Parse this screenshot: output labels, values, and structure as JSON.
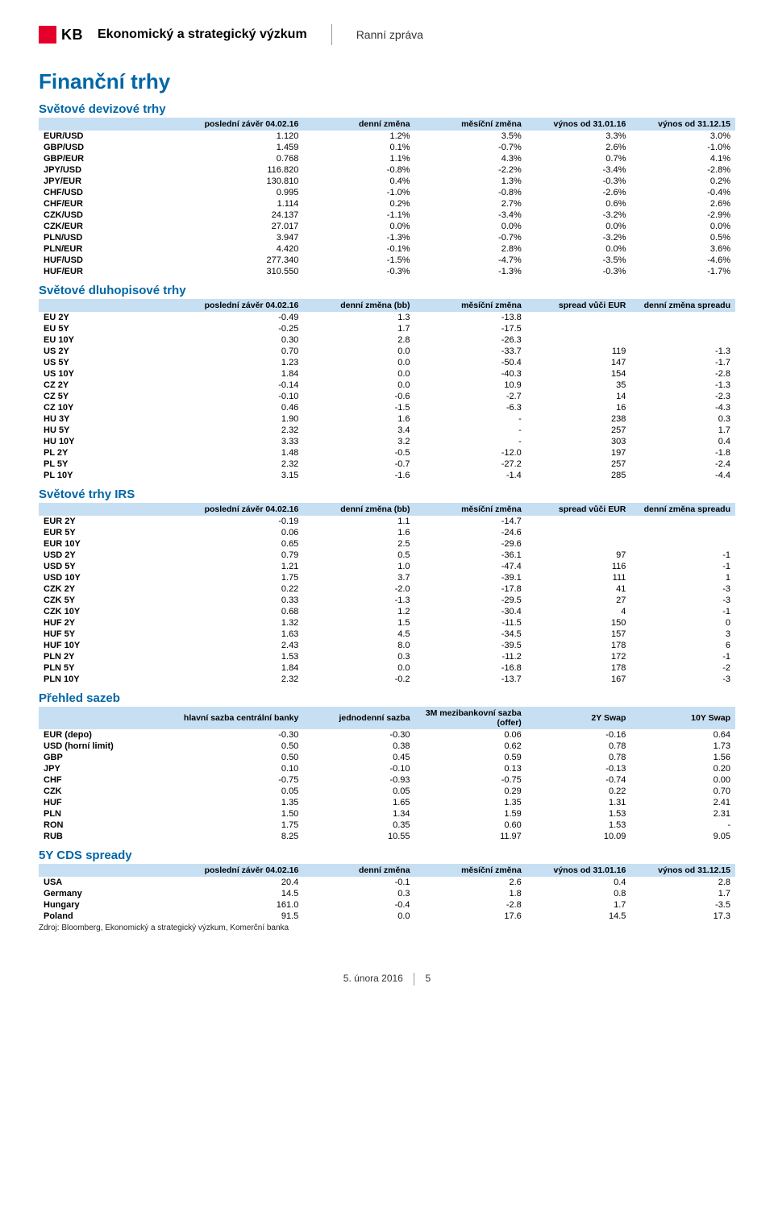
{
  "header": {
    "logo_text": "KB",
    "title": "Ekonomický a strategický výzkum",
    "subtitle": "Ranní zpráva"
  },
  "page_title": "Finanční trhy",
  "colors": {
    "brand_accent": "#0066a6",
    "logo_red": "#e4002b",
    "table_header_bg": "#c7dff2",
    "text": "#000000",
    "background": "#ffffff"
  },
  "fx": {
    "title": "Světové devizové trhy",
    "columns": [
      "",
      "poslední závěr 04.02.16",
      "denní změna",
      "měsíční změna",
      "výnos od 31.01.16",
      "výnos od 31.12.15"
    ],
    "rows": [
      [
        "EUR/USD",
        "1.120",
        "1.2%",
        "3.5%",
        "3.3%",
        "3.0%"
      ],
      [
        "GBP/USD",
        "1.459",
        "0.1%",
        "-0.7%",
        "2.6%",
        "-1.0%"
      ],
      [
        "GBP/EUR",
        "0.768",
        "1.1%",
        "4.3%",
        "0.7%",
        "4.1%"
      ],
      [
        "JPY/USD",
        "116.820",
        "-0.8%",
        "-2.2%",
        "-3.4%",
        "-2.8%"
      ],
      [
        "JPY/EUR",
        "130.810",
        "0.4%",
        "1.3%",
        "-0.3%",
        "0.2%"
      ],
      [
        "CHF/USD",
        "0.995",
        "-1.0%",
        "-0.8%",
        "-2.6%",
        "-0.4%"
      ],
      [
        "CHF/EUR",
        "1.114",
        "0.2%",
        "2.7%",
        "0.6%",
        "2.6%"
      ],
      [
        "CZK/USD",
        "24.137",
        "-1.1%",
        "-3.4%",
        "-3.2%",
        "-2.9%"
      ],
      [
        "CZK/EUR",
        "27.017",
        "0.0%",
        "0.0%",
        "0.0%",
        "0.0%"
      ],
      [
        "PLN/USD",
        "3.947",
        "-1.3%",
        "-0.7%",
        "-3.2%",
        "0.5%"
      ],
      [
        "PLN/EUR",
        "4.420",
        "-0.1%",
        "2.8%",
        "0.0%",
        "3.6%"
      ],
      [
        "HUF/USD",
        "277.340",
        "-1.5%",
        "-4.7%",
        "-3.5%",
        "-4.6%"
      ],
      [
        "HUF/EUR",
        "310.550",
        "-0.3%",
        "-1.3%",
        "-0.3%",
        "-1.7%"
      ]
    ]
  },
  "bonds": {
    "title": "Světové dluhopisové trhy",
    "columns": [
      "",
      "poslední závěr 04.02.16",
      "denní změna (bb)",
      "měsíční změna",
      "spread vůči EUR",
      "denní změna spreadu"
    ],
    "rows": [
      [
        "EU 2Y",
        "-0.49",
        "1.3",
        "-13.8",
        "",
        ""
      ],
      [
        "EU 5Y",
        "-0.25",
        "1.7",
        "-17.5",
        "",
        ""
      ],
      [
        "EU 10Y",
        "0.30",
        "2.8",
        "-26.3",
        "",
        ""
      ],
      [
        "US 2Y",
        "0.70",
        "0.0",
        "-33.7",
        "119",
        "-1.3"
      ],
      [
        "US 5Y",
        "1.23",
        "0.0",
        "-50.4",
        "147",
        "-1.7"
      ],
      [
        "US 10Y",
        "1.84",
        "0.0",
        "-40.3",
        "154",
        "-2.8"
      ],
      [
        "CZ 2Y",
        "-0.14",
        "0.0",
        "10.9",
        "35",
        "-1.3"
      ],
      [
        "CZ 5Y",
        "-0.10",
        "-0.6",
        "-2.7",
        "14",
        "-2.3"
      ],
      [
        "CZ 10Y",
        "0.46",
        "-1.5",
        "-6.3",
        "16",
        "-4.3"
      ],
      [
        "HU 3Y",
        "1.90",
        "1.6",
        "-",
        "238",
        "0.3"
      ],
      [
        "HU 5Y",
        "2.32",
        "3.4",
        "-",
        "257",
        "1.7"
      ],
      [
        "HU 10Y",
        "3.33",
        "3.2",
        "-",
        "303",
        "0.4"
      ],
      [
        "PL 2Y",
        "1.48",
        "-0.5",
        "-12.0",
        "197",
        "-1.8"
      ],
      [
        "PL 5Y",
        "2.32",
        "-0.7",
        "-27.2",
        "257",
        "-2.4"
      ],
      [
        "PL 10Y",
        "3.15",
        "-1.6",
        "-1.4",
        "285",
        "-4.4"
      ]
    ]
  },
  "irs": {
    "title": "Světové trhy IRS",
    "columns": [
      "",
      "poslední závěr 04.02.16",
      "denní změna (bb)",
      "měsíční změna",
      "spread vůči EUR",
      "denní změna spreadu"
    ],
    "rows": [
      [
        "EUR 2Y",
        "-0.19",
        "1.1",
        "-14.7",
        "",
        ""
      ],
      [
        "EUR 5Y",
        "0.06",
        "1.6",
        "-24.6",
        "",
        ""
      ],
      [
        "EUR 10Y",
        "0.65",
        "2.5",
        "-29.6",
        "",
        ""
      ],
      [
        "USD 2Y",
        "0.79",
        "0.5",
        "-36.1",
        "97",
        "-1"
      ],
      [
        "USD 5Y",
        "1.21",
        "1.0",
        "-47.4",
        "116",
        "-1"
      ],
      [
        "USD 10Y",
        "1.75",
        "3.7",
        "-39.1",
        "111",
        "1"
      ],
      [
        "CZK 2Y",
        "0.22",
        "-2.0",
        "-17.8",
        "41",
        "-3"
      ],
      [
        "CZK 5Y",
        "0.33",
        "-1.3",
        "-29.5",
        "27",
        "-3"
      ],
      [
        "CZK 10Y",
        "0.68",
        "1.2",
        "-30.4",
        "4",
        "-1"
      ],
      [
        "HUF 2Y",
        "1.32",
        "1.5",
        "-11.5",
        "150",
        "0"
      ],
      [
        "HUF 5Y",
        "1.63",
        "4.5",
        "-34.5",
        "157",
        "3"
      ],
      [
        "HUF 10Y",
        "2.43",
        "8.0",
        "-39.5",
        "178",
        "6"
      ],
      [
        "PLN 2Y",
        "1.53",
        "0.3",
        "-11.2",
        "172",
        "-1"
      ],
      [
        "PLN 5Y",
        "1.84",
        "0.0",
        "-16.8",
        "178",
        "-2"
      ],
      [
        "PLN 10Y",
        "2.32",
        "-0.2",
        "-13.7",
        "167",
        "-3"
      ]
    ]
  },
  "rates": {
    "title": "Přehled sazeb",
    "columns": [
      "",
      "hlavní sazba centrální banky",
      "jednodenní sazba",
      "3M mezibankovní sazba (offer)",
      "2Y Swap",
      "10Y Swap"
    ],
    "rows": [
      [
        "EUR (depo)",
        "-0.30",
        "-0.30",
        "0.06",
        "-0.16",
        "0.64"
      ],
      [
        "USD (horní limit)",
        "0.50",
        "0.38",
        "0.62",
        "0.78",
        "1.73"
      ],
      [
        "GBP",
        "0.50",
        "0.45",
        "0.59",
        "0.78",
        "1.56"
      ],
      [
        "JPY",
        "0.10",
        "-0.10",
        "0.13",
        "-0.13",
        "0.20"
      ],
      [
        "CHF",
        "-0.75",
        "-0.93",
        "-0.75",
        "-0.74",
        "0.00"
      ],
      [
        "CZK",
        "0.05",
        "0.05",
        "0.29",
        "0.22",
        "0.70"
      ],
      [
        "HUF",
        "1.35",
        "1.65",
        "1.35",
        "1.31",
        "2.41"
      ],
      [
        "PLN",
        "1.50",
        "1.34",
        "1.59",
        "1.53",
        "2.31"
      ],
      [
        "RON",
        "1.75",
        "0.35",
        "0.60",
        "1.53",
        "-"
      ],
      [
        "RUB",
        "8.25",
        "10.55",
        "11.97",
        "10.09",
        "9.05"
      ]
    ]
  },
  "cds": {
    "title": "5Y CDS spready",
    "columns": [
      "",
      "poslední závěr 04.02.16",
      "denní změna",
      "měsíční změna",
      "výnos od 31.01.16",
      "výnos od 31.12.15"
    ],
    "rows": [
      [
        "USA",
        "20.4",
        "-0.1",
        "2.6",
        "0.4",
        "2.8"
      ],
      [
        "Germany",
        "14.5",
        "0.3",
        "1.8",
        "0.8",
        "1.7"
      ],
      [
        "Hungary",
        "161.0",
        "-0.4",
        "-2.8",
        "1.7",
        "-3.5"
      ],
      [
        "Poland",
        "91.5",
        "0.0",
        "17.6",
        "14.5",
        "17.3"
      ]
    ]
  },
  "source_note": "Zdroj: Bloomberg, Ekonomický a strategický výzkum, Komerční banka",
  "footer": {
    "date": "5. února 2016",
    "page": "5"
  },
  "col_widths": [
    "18%",
    "20%",
    "16%",
    "16%",
    "15%",
    "15%"
  ]
}
